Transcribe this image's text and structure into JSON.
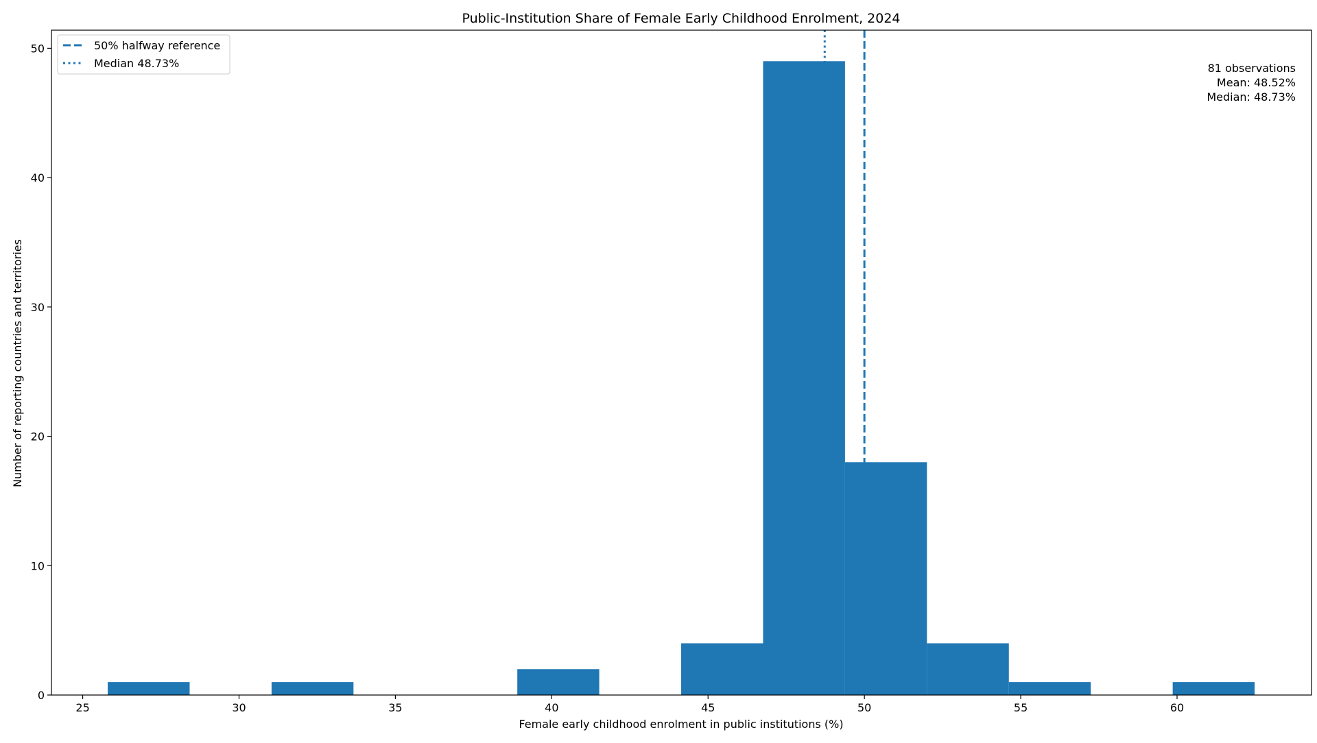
{
  "chart_data": {
    "type": "histogram",
    "title": "Public-Institution Share of Female Early Childhood Enrolment, 2024",
    "xlabel": "Female early childhood enrolment in public institutions (%)",
    "ylabel": "Number of reporting countries and territories",
    "xlim": [
      24,
      64.3
    ],
    "ylim": [
      0,
      51.4
    ],
    "xticks": [
      25,
      30,
      35,
      40,
      45,
      50,
      55,
      60
    ],
    "yticks": [
      0,
      10,
      20,
      30,
      40,
      50
    ],
    "bin_edges": [
      25.8,
      28.42,
      31.04,
      33.66,
      36.28,
      38.9,
      41.52,
      44.14,
      46.76,
      49.38,
      52.0,
      54.62,
      57.24,
      59.86,
      62.48
    ],
    "counts": [
      1,
      0,
      1,
      0,
      0,
      2,
      0,
      4,
      49,
      18,
      4,
      1,
      0,
      1
    ],
    "bar_color": "#1f77b4",
    "reference_lines": [
      {
        "label": "50% halfway reference",
        "x": 50.0,
        "style": "dashed",
        "color": "#1f77b4"
      },
      {
        "label": "Median 48.73%",
        "x": 48.73,
        "style": "dotted",
        "color": "#1f77b4"
      }
    ],
    "legend_position": "top-left",
    "annotation": {
      "position": "top-right",
      "lines": [
        "81 observations",
        "Mean: 48.52%",
        "Median: 48.73%"
      ]
    },
    "grid": false
  }
}
